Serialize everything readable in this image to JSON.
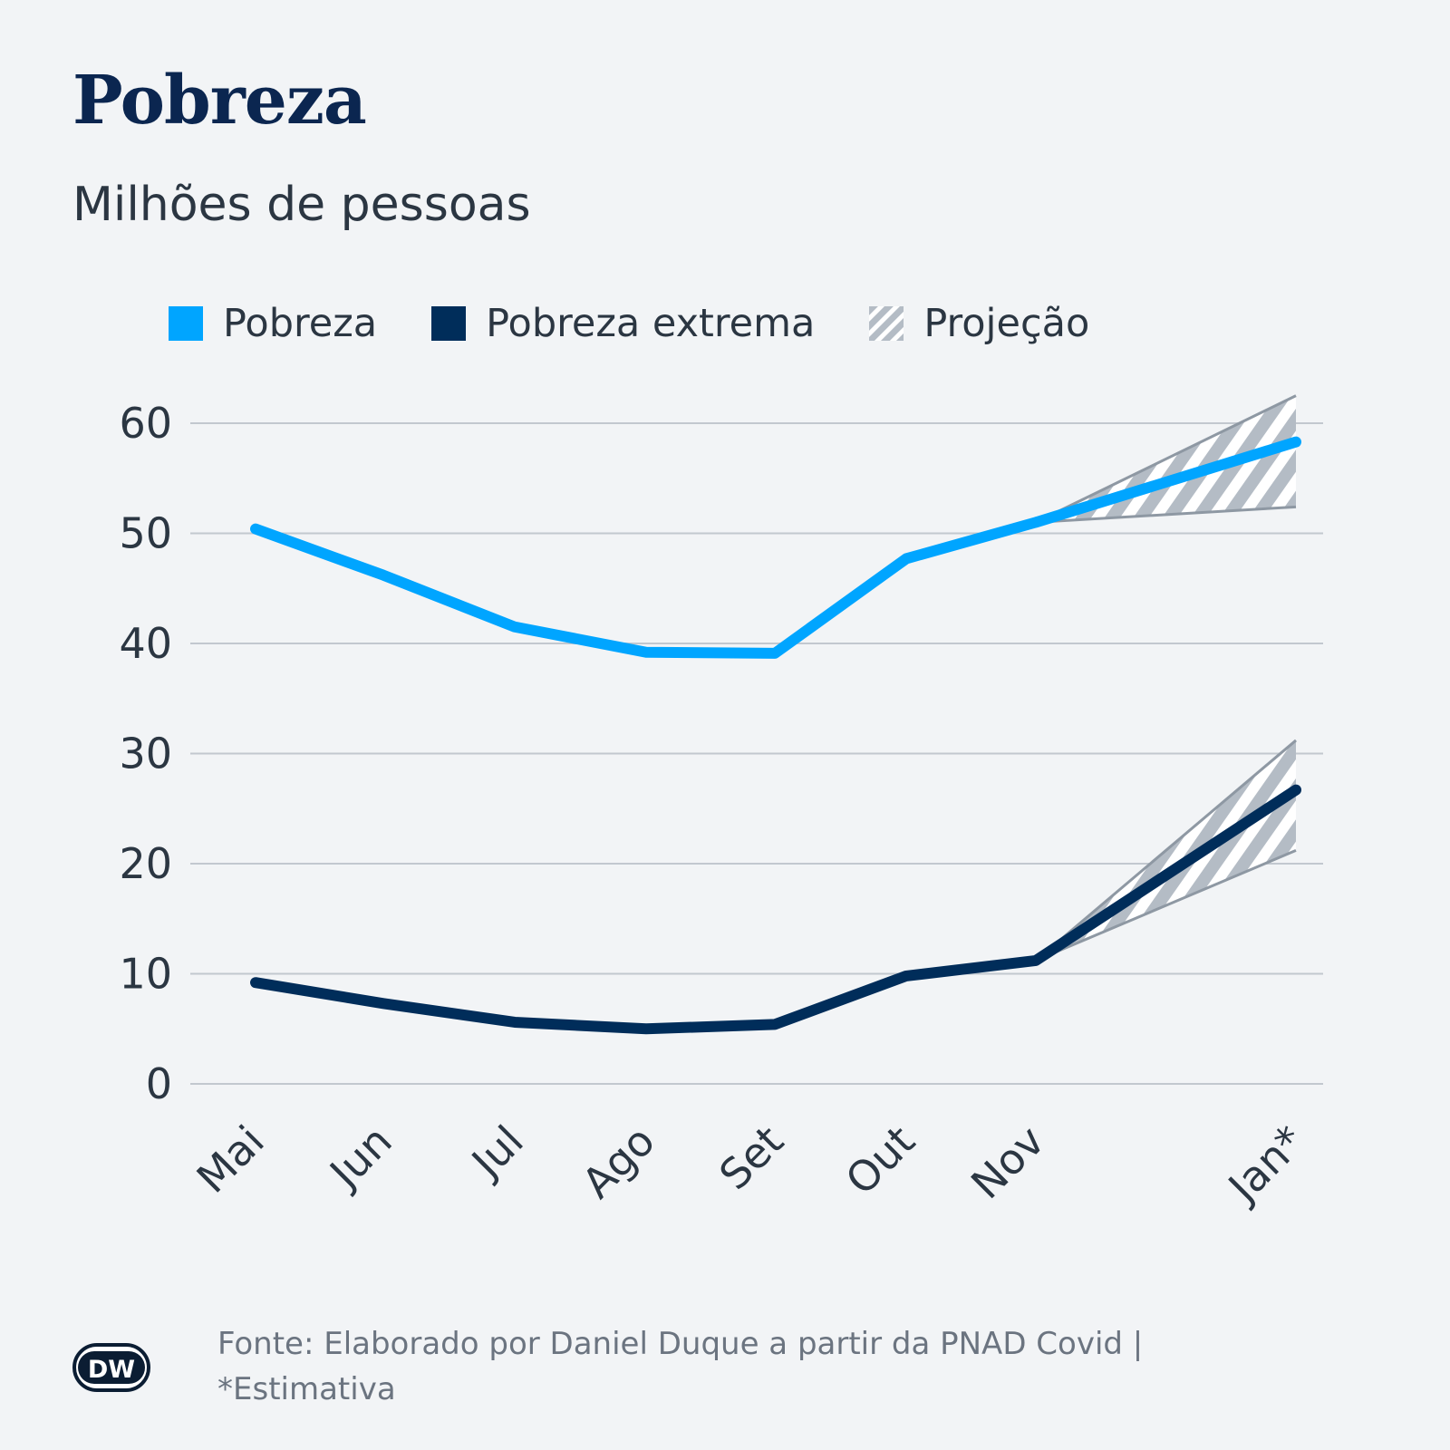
{
  "chart_data": {
    "type": "line",
    "title": "Pobreza",
    "subtitle": "Milhões de pessoas",
    "categories": [
      "Mai",
      "Jun",
      "Jul",
      "Ago",
      "Set",
      "Out",
      "Nov",
      "Jan*"
    ],
    "series": [
      {
        "name": "Pobreza",
        "color": "#00a5ff",
        "values": [
          50.4,
          46.2,
          41.5,
          39.2,
          39.1,
          47.7,
          51.0,
          58.3
        ]
      },
      {
        "name": "Pobreza extrema",
        "color": "#002d5a",
        "values": [
          9.2,
          7.3,
          5.6,
          5.0,
          5.4,
          9.8,
          11.2,
          26.7
        ]
      }
    ],
    "projection": {
      "name": "Projeção",
      "from": "Nov",
      "to": "Jan*",
      "bands": [
        {
          "series": "Pobreza",
          "upper": 62.5,
          "lower": 52.4
        },
        {
          "series": "Pobreza extrema",
          "upper": 31.2,
          "lower": 21.2
        }
      ]
    },
    "yticks": [
      0,
      10,
      20,
      30,
      40,
      50,
      60
    ],
    "ylim": [
      0,
      62.5
    ],
    "grid": true,
    "legend": "top"
  },
  "source": "Fonte: Elaborado por Daniel Duque a partir da PNAD Covid | *Estimativa",
  "logo": {
    "text": "DW",
    "icon": "dw-logo-icon"
  }
}
